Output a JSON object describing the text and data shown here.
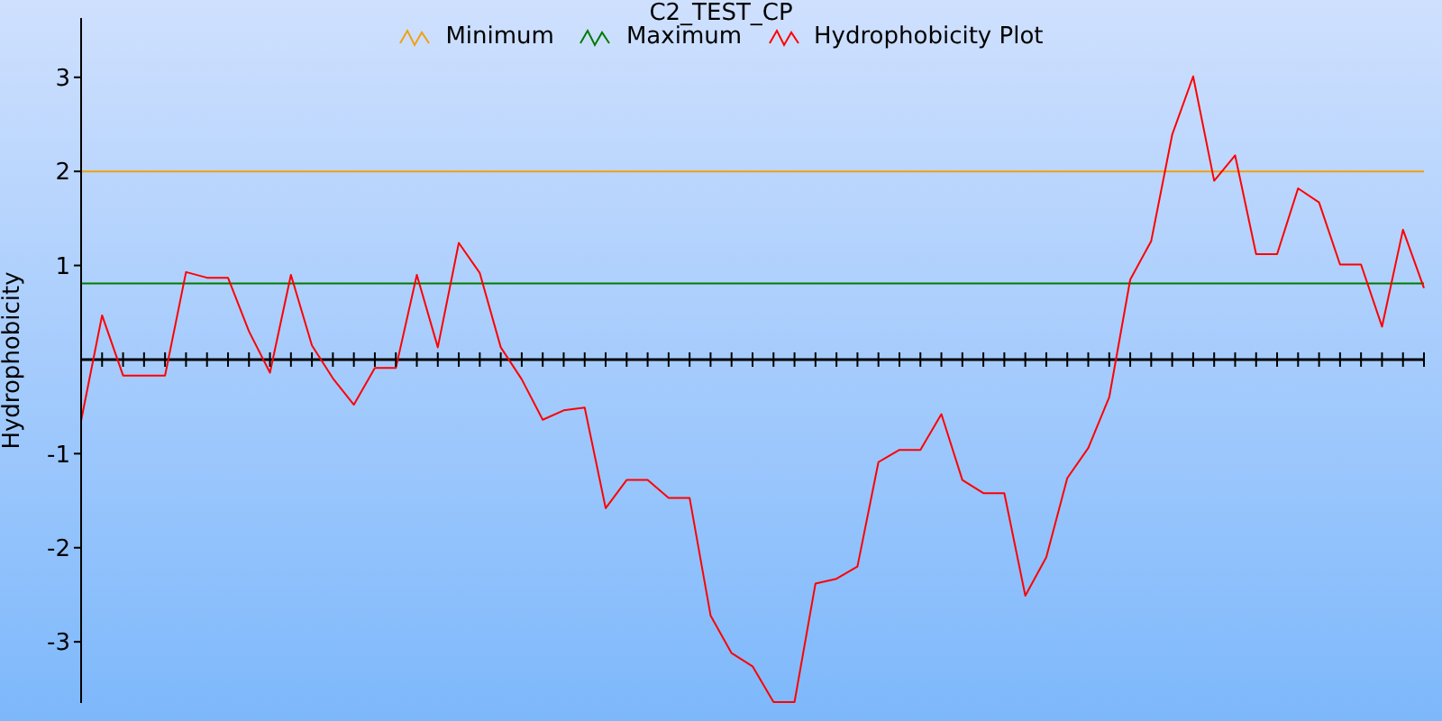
{
  "chart_data": {
    "type": "line",
    "title": "C2_TEST_CP",
    "ylabel": "Hydrophobicity",
    "categories": [
      null,
      null,
      null,
      null,
      null,
      null,
      null,
      null,
      null,
      null,
      null,
      null,
      null,
      null,
      null,
      null,
      null,
      null,
      null,
      null,
      null,
      null,
      null,
      null,
      null,
      null,
      null,
      null,
      null,
      null,
      null,
      null,
      null,
      null,
      null,
      null,
      null,
      null,
      null,
      null,
      null,
      null,
      null,
      null,
      null,
      null,
      null,
      null,
      null,
      null,
      null,
      null,
      null,
      null,
      null,
      null,
      null,
      null,
      null,
      null,
      null,
      null,
      null,
      null,
      null
    ],
    "series": [
      {
        "name": "Minimum",
        "color": "#f0a010",
        "values": [
          2,
          2,
          2,
          2,
          2,
          2,
          2,
          2,
          2,
          2,
          2,
          2,
          2,
          2,
          2,
          2,
          2,
          2,
          2,
          2,
          2,
          2,
          2,
          2,
          2,
          2,
          2,
          2,
          2,
          2,
          2,
          2,
          2,
          2,
          2,
          2,
          2,
          2,
          2,
          2,
          2,
          2,
          2,
          2,
          2,
          2,
          2,
          2,
          2,
          2,
          2,
          2,
          2,
          2,
          2,
          2,
          2,
          2,
          2,
          2,
          2,
          2,
          2,
          2,
          2
        ]
      },
      {
        "name": "Maximum",
        "color": "#007a00",
        "values": [
          0.81,
          0.81,
          0.81,
          0.81,
          0.81,
          0.81,
          0.81,
          0.81,
          0.81,
          0.81,
          0.81,
          0.81,
          0.81,
          0.81,
          0.81,
          0.81,
          0.81,
          0.81,
          0.81,
          0.81,
          0.81,
          0.81,
          0.81,
          0.81,
          0.81,
          0.81,
          0.81,
          0.81,
          0.81,
          0.81,
          0.81,
          0.81,
          0.81,
          0.81,
          0.81,
          0.81,
          0.81,
          0.81,
          0.81,
          0.81,
          0.81,
          0.81,
          0.81,
          0.81,
          0.81,
          0.81,
          0.81,
          0.81,
          0.81,
          0.81,
          0.81,
          0.81,
          0.81,
          0.81,
          0.81,
          0.81,
          0.81,
          0.81,
          0.81,
          0.81,
          0.81,
          0.81,
          0.81,
          0.81,
          0.81
        ]
      },
      {
        "name": "Hydrophobicity Plot",
        "color": "#ff0000",
        "values": [
          -0.65,
          0.47,
          -0.17,
          -0.17,
          -0.17,
          0.93,
          0.87,
          0.87,
          0.3,
          -0.14,
          0.9,
          0.15,
          -0.2,
          -0.48,
          -0.09,
          -0.09,
          0.9,
          0.13,
          1.24,
          0.92,
          0.13,
          -0.21,
          -0.64,
          -0.54,
          -0.51,
          -1.58,
          -1.28,
          -1.28,
          -1.47,
          -1.47,
          -2.72,
          -3.12,
          -3.26,
          -3.64,
          -3.64,
          -2.38,
          -2.33,
          -2.2,
          -1.09,
          -0.96,
          -0.96,
          -0.58,
          -1.28,
          -1.42,
          -1.42,
          -2.51,
          -2.1,
          -1.26,
          -0.94,
          -0.4,
          0.85,
          1.26,
          2.39,
          3.01,
          1.9,
          2.17,
          1.12,
          1.12,
          1.82,
          1.67,
          1.01,
          1.01,
          0.35,
          1.38,
          0.76
        ]
      }
    ],
    "ylim": [
      -3.65,
      3.63
    ],
    "yticks": [
      -3,
      -2,
      -1,
      1,
      2,
      3
    ],
    "ref_lines": [
      {
        "axis": "y",
        "value": 0,
        "color": "#000000"
      }
    ],
    "tick_labels": "y",
    "legend": "top",
    "marker": "none",
    "line_style": "solid"
  }
}
